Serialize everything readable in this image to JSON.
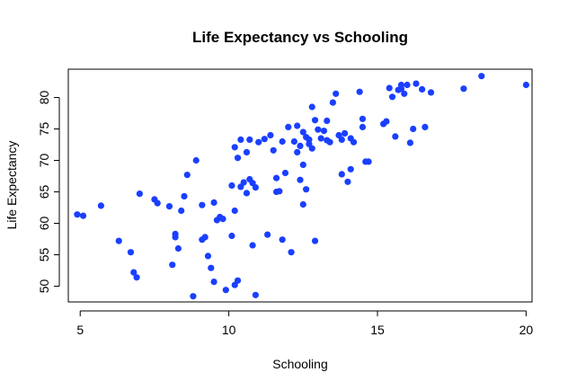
{
  "chart_data": {
    "type": "scatter",
    "title": "Life Expectancy vs Schooling",
    "xlabel": "Schooling",
    "ylabel": "Life Expectancy",
    "xlim": [
      4.6,
      20.2
    ],
    "ylim": [
      47.5,
      84.5
    ],
    "xticks": [
      5,
      10,
      15,
      20
    ],
    "yticks": [
      50,
      55,
      60,
      65,
      70,
      75,
      80
    ],
    "point_color": "#1a3fff",
    "grid": false,
    "legend": "none",
    "points": [
      [
        4.9,
        61.4
      ],
      [
        5.1,
        61.2
      ],
      [
        5.7,
        62.8
      ],
      [
        6.3,
        57.2
      ],
      [
        6.7,
        55.4
      ],
      [
        6.8,
        52.2
      ],
      [
        6.9,
        51.4
      ],
      [
        7.0,
        64.7
      ],
      [
        7.5,
        63.8
      ],
      [
        7.6,
        63.2
      ],
      [
        8.0,
        62.7
      ],
      [
        8.1,
        53.4
      ],
      [
        8.2,
        58.3
      ],
      [
        8.2,
        57.8
      ],
      [
        8.3,
        56.0
      ],
      [
        8.4,
        62.0
      ],
      [
        8.5,
        64.3
      ],
      [
        8.6,
        67.7
      ],
      [
        8.8,
        48.4
      ],
      [
        8.9,
        70.0
      ],
      [
        9.1,
        62.9
      ],
      [
        9.1,
        57.4
      ],
      [
        9.2,
        57.8
      ],
      [
        9.3,
        54.8
      ],
      [
        9.4,
        52.9
      ],
      [
        9.5,
        50.7
      ],
      [
        9.5,
        63.3
      ],
      [
        9.6,
        60.5
      ],
      [
        9.7,
        61.0
      ],
      [
        9.8,
        60.7
      ],
      [
        9.9,
        49.4
      ],
      [
        10.1,
        66.0
      ],
      [
        10.1,
        58.0
      ],
      [
        10.2,
        72.1
      ],
      [
        10.2,
        62.0
      ],
      [
        10.2,
        50.2
      ],
      [
        10.3,
        70.4
      ],
      [
        10.3,
        50.9
      ],
      [
        10.4,
        73.3
      ],
      [
        10.4,
        65.8
      ],
      [
        10.5,
        66.5
      ],
      [
        10.6,
        64.8
      ],
      [
        10.6,
        71.3
      ],
      [
        10.7,
        73.3
      ],
      [
        10.7,
        67.0
      ],
      [
        10.8,
        66.4
      ],
      [
        10.8,
        56.5
      ],
      [
        10.9,
        65.7
      ],
      [
        10.9,
        48.6
      ],
      [
        11.0,
        72.9
      ],
      [
        11.2,
        73.4
      ],
      [
        11.3,
        58.2
      ],
      [
        11.4,
        74.0
      ],
      [
        11.5,
        71.6
      ],
      [
        11.6,
        67.2
      ],
      [
        11.6,
        65.0
      ],
      [
        11.7,
        65.1
      ],
      [
        11.8,
        57.4
      ],
      [
        11.8,
        73.0
      ],
      [
        11.9,
        68.0
      ],
      [
        12.0,
        75.3
      ],
      [
        12.1,
        55.4
      ],
      [
        12.2,
        73.0
      ],
      [
        12.3,
        71.3
      ],
      [
        12.3,
        75.5
      ],
      [
        12.4,
        72.3
      ],
      [
        12.4,
        66.9
      ],
      [
        12.5,
        69.3
      ],
      [
        12.5,
        74.5
      ],
      [
        12.5,
        63.0
      ],
      [
        12.6,
        73.7
      ],
      [
        12.6,
        65.4
      ],
      [
        12.7,
        72.6
      ],
      [
        12.7,
        73.3
      ],
      [
        12.8,
        78.5
      ],
      [
        12.8,
        71.9
      ],
      [
        12.9,
        76.4
      ],
      [
        12.9,
        57.2
      ],
      [
        13.0,
        74.9
      ],
      [
        13.1,
        73.5
      ],
      [
        13.2,
        74.7
      ],
      [
        13.3,
        76.3
      ],
      [
        13.3,
        73.2
      ],
      [
        13.4,
        72.9
      ],
      [
        13.5,
        79.2
      ],
      [
        13.6,
        80.6
      ],
      [
        13.7,
        74.0
      ],
      [
        13.8,
        73.3
      ],
      [
        13.8,
        67.8
      ],
      [
        13.9,
        74.3
      ],
      [
        14.0,
        66.6
      ],
      [
        14.1,
        68.6
      ],
      [
        14.1,
        73.5
      ],
      [
        14.2,
        72.9
      ],
      [
        14.4,
        80.9
      ],
      [
        14.5,
        76.6
      ],
      [
        14.5,
        75.3
      ],
      [
        14.6,
        69.8
      ],
      [
        14.7,
        69.8
      ],
      [
        15.2,
        75.8
      ],
      [
        15.3,
        76.2
      ],
      [
        15.4,
        81.5
      ],
      [
        15.5,
        80.1
      ],
      [
        15.6,
        73.8
      ],
      [
        15.7,
        81.2
      ],
      [
        15.8,
        82.0
      ],
      [
        15.8,
        81.4
      ],
      [
        15.9,
        80.6
      ],
      [
        16.0,
        82.0
      ],
      [
        16.1,
        72.8
      ],
      [
        16.2,
        75.0
      ],
      [
        16.3,
        82.2
      ],
      [
        16.5,
        81.3
      ],
      [
        16.6,
        75.3
      ],
      [
        16.8,
        80.8
      ],
      [
        17.9,
        81.4
      ],
      [
        18.5,
        83.4
      ],
      [
        20.0,
        82.0
      ]
    ]
  }
}
